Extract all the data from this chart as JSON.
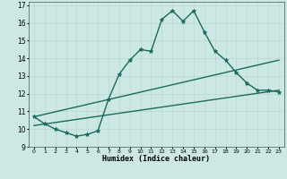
{
  "xlabel": "Humidex (Indice chaleur)",
  "ylabel": "",
  "bg_color": "#cce8e4",
  "line_color": "#1a6b5a",
  "grid_color": "#b8d8d4",
  "xlim": [
    -0.5,
    23.5
  ],
  "ylim": [
    9,
    17.2
  ],
  "xticks": [
    0,
    1,
    2,
    3,
    4,
    5,
    6,
    7,
    8,
    9,
    10,
    11,
    12,
    13,
    14,
    15,
    16,
    17,
    18,
    19,
    20,
    21,
    22,
    23
  ],
  "yticks": [
    9,
    10,
    11,
    12,
    13,
    14,
    15,
    16,
    17
  ],
  "line1_x": [
    0,
    1,
    2,
    3,
    4,
    5,
    6,
    7,
    8,
    9,
    10,
    11,
    12,
    13,
    14,
    15,
    16,
    17,
    18,
    19,
    20,
    21,
    22,
    23
  ],
  "line1_y": [
    10.7,
    10.3,
    10.0,
    9.8,
    9.6,
    9.7,
    9.9,
    11.7,
    13.1,
    13.9,
    14.5,
    14.4,
    16.2,
    16.7,
    16.1,
    16.7,
    15.5,
    14.4,
    13.9,
    13.2,
    12.6,
    12.2,
    12.2,
    12.1
  ],
  "line2_x": [
    0,
    23
  ],
  "line2_y": [
    10.7,
    13.9
  ],
  "line3_x": [
    0,
    23
  ],
  "line3_y": [
    10.2,
    12.2
  ],
  "marker": "*",
  "markersize": 3.5,
  "linewidth": 1.0
}
